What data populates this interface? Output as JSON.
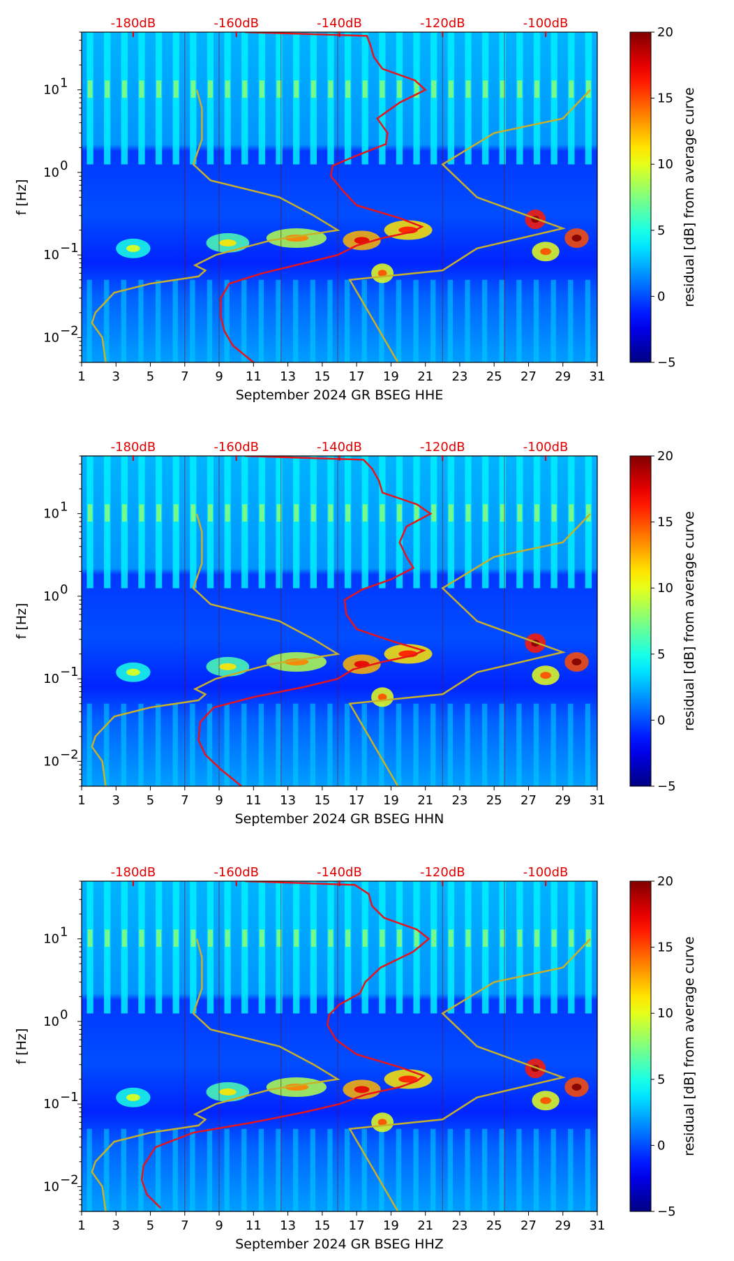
{
  "chart_data": [
    {
      "type": "heatmap",
      "title": "",
      "xlabel": "September 2024 GR BSEG  HHE",
      "ylabel": "f [Hz]",
      "x_ticks": [
        "1",
        "3",
        "5",
        "7",
        "9",
        "11",
        "13",
        "15",
        "17",
        "19",
        "21",
        "23",
        "25",
        "27",
        "29",
        "31"
      ],
      "y_ticks": [
        "10^-2",
        "10^-1",
        "10^0",
        "10^1"
      ],
      "xlim": [
        1,
        31
      ],
      "ylim": [
        0.005,
        50
      ],
      "yscale": "log",
      "top_axis_ticks": [
        "-180dB",
        "-160dB",
        "-140dB",
        "-120dB",
        "-100dB"
      ],
      "colorbar": {
        "label": "residual [dB] from average curve",
        "ticks": [
          "20",
          "15",
          "10",
          "5",
          "0",
          "−5"
        ],
        "range": [
          -5,
          20
        ],
        "colormap": "jet"
      },
      "red_curve": [
        [
          0.005,
          11.0
        ],
        [
          0.008,
          9.8
        ],
        [
          0.012,
          9.3
        ],
        [
          0.018,
          9.1
        ],
        [
          0.03,
          9.1
        ],
        [
          0.045,
          9.6
        ],
        [
          0.06,
          11.5
        ],
        [
          0.08,
          14.0
        ],
        [
          0.1,
          15.9
        ],
        [
          0.13,
          17.0
        ],
        [
          0.16,
          18.5
        ],
        [
          0.19,
          20.2
        ],
        [
          0.22,
          20.8
        ],
        [
          0.28,
          19.5
        ],
        [
          0.4,
          17.0
        ],
        [
          0.6,
          16.2
        ],
        [
          0.9,
          15.5
        ],
        [
          1.2,
          15.6
        ],
        [
          1.6,
          17.0
        ],
        [
          2.2,
          18.7
        ],
        [
          3,
          18.8
        ],
        [
          4.5,
          18.2
        ],
        [
          7,
          19.5
        ],
        [
          10,
          21.0
        ],
        [
          13,
          20.4
        ],
        [
          18,
          18.5
        ],
        [
          25,
          18.0
        ],
        [
          35,
          17.8
        ],
        [
          45,
          17.6
        ],
        [
          50,
          10.5
        ]
      ],
      "olive_curve_left": [
        [
          0.005,
          2.4
        ],
        [
          0.01,
          2.2
        ],
        [
          0.015,
          1.6
        ],
        [
          0.02,
          1.8
        ],
        [
          0.035,
          2.9
        ],
        [
          0.045,
          5.0
        ],
        [
          0.055,
          7.8
        ],
        [
          0.065,
          8.2
        ],
        [
          0.075,
          7.6
        ],
        [
          0.1,
          8.8
        ],
        [
          0.15,
          12.0
        ],
        [
          0.2,
          15.9
        ],
        [
          0.3,
          14.5
        ],
        [
          0.5,
          12.5
        ],
        [
          0.8,
          8.5
        ],
        [
          1.25,
          7.5
        ],
        [
          2.5,
          8.0
        ],
        [
          6,
          8.0
        ],
        [
          10,
          7.7
        ]
      ],
      "olive_curve_right": [
        [
          0.005,
          19.4
        ],
        [
          0.05,
          16.6
        ],
        [
          0.065,
          22.0
        ],
        [
          0.12,
          24.0
        ],
        [
          0.21,
          29.0
        ],
        [
          0.5,
          24.0
        ],
        [
          1.25,
          22.0
        ],
        [
          3,
          25.0
        ],
        [
          4.5,
          29.0
        ],
        [
          10,
          30.6
        ]
      ]
    },
    {
      "type": "heatmap",
      "title": "",
      "xlabel": "September 2024 GR BSEG  HHN",
      "ylabel": "f [Hz]",
      "x_ticks": [
        "1",
        "3",
        "5",
        "7",
        "9",
        "11",
        "13",
        "15",
        "17",
        "19",
        "21",
        "23",
        "25",
        "27",
        "29",
        "31"
      ],
      "y_ticks": [
        "10^-2",
        "10^-1",
        "10^0",
        "10^1"
      ],
      "xlim": [
        1,
        31
      ],
      "ylim": [
        0.005,
        50
      ],
      "yscale": "log",
      "top_axis_ticks": [
        "-180dB",
        "-160dB",
        "-140dB",
        "-120dB",
        "-100dB"
      ],
      "colorbar": {
        "label": "residual [dB] from average curve",
        "ticks": [
          "20",
          "15",
          "10",
          "5",
          "0",
          "−5"
        ],
        "range": [
          -5,
          20
        ],
        "colormap": "jet"
      },
      "red_curve": [
        [
          0.005,
          10.3
        ],
        [
          0.008,
          9.1
        ],
        [
          0.012,
          8.2
        ],
        [
          0.018,
          7.8
        ],
        [
          0.03,
          7.9
        ],
        [
          0.045,
          8.7
        ],
        [
          0.06,
          11.0
        ],
        [
          0.08,
          14.0
        ],
        [
          0.1,
          15.9
        ],
        [
          0.13,
          16.8
        ],
        [
          0.16,
          18.5
        ],
        [
          0.19,
          20.2
        ],
        [
          0.22,
          20.9
        ],
        [
          0.28,
          19.2
        ],
        [
          0.4,
          17.0
        ],
        [
          0.6,
          16.4
        ],
        [
          0.9,
          16.3
        ],
        [
          1.2,
          17.3
        ],
        [
          1.6,
          19.0
        ],
        [
          2.2,
          20.3
        ],
        [
          3,
          19.9
        ],
        [
          4.5,
          19.5
        ],
        [
          7,
          19.9
        ],
        [
          10,
          21.3
        ],
        [
          13,
          20.5
        ],
        [
          18,
          18.5
        ],
        [
          25,
          18.3
        ],
        [
          35,
          17.9
        ],
        [
          45,
          17.4
        ],
        [
          50,
          10.5
        ]
      ],
      "olive_curve_left": [
        [
          0.005,
          2.4
        ],
        [
          0.01,
          2.2
        ],
        [
          0.015,
          1.6
        ],
        [
          0.02,
          1.8
        ],
        [
          0.035,
          2.9
        ],
        [
          0.045,
          5.0
        ],
        [
          0.055,
          7.8
        ],
        [
          0.065,
          8.2
        ],
        [
          0.075,
          7.6
        ],
        [
          0.1,
          8.8
        ],
        [
          0.15,
          12.0
        ],
        [
          0.2,
          15.9
        ],
        [
          0.3,
          14.5
        ],
        [
          0.5,
          12.5
        ],
        [
          0.8,
          8.5
        ],
        [
          1.25,
          7.5
        ],
        [
          2.5,
          8.0
        ],
        [
          6,
          8.0
        ],
        [
          10,
          7.7
        ]
      ],
      "olive_curve_right": [
        [
          0.005,
          19.4
        ],
        [
          0.05,
          16.6
        ],
        [
          0.065,
          22.0
        ],
        [
          0.12,
          24.0
        ],
        [
          0.21,
          29.0
        ],
        [
          0.5,
          24.0
        ],
        [
          1.25,
          22.0
        ],
        [
          3,
          25.0
        ],
        [
          4.5,
          29.0
        ],
        [
          10,
          30.6
        ]
      ]
    },
    {
      "type": "heatmap",
      "title": "",
      "xlabel": "September 2024 GR BSEG  HHZ",
      "ylabel": "f [Hz]",
      "x_ticks": [
        "1",
        "3",
        "5",
        "7",
        "9",
        "11",
        "13",
        "15",
        "17",
        "19",
        "21",
        "23",
        "25",
        "27",
        "29",
        "31"
      ],
      "y_ticks": [
        "10^-2",
        "10^-1",
        "10^0",
        "10^1"
      ],
      "xlim": [
        1,
        31
      ],
      "ylim": [
        0.005,
        50
      ],
      "yscale": "log",
      "top_axis_ticks": [
        "-180dB",
        "-160dB",
        "-140dB",
        "-120dB",
        "-100dB"
      ],
      "colorbar": {
        "label": "residual [dB] from average curve",
        "ticks": [
          "20",
          "15",
          "10",
          "5",
          "0",
          "−5"
        ],
        "range": [
          -5,
          20
        ],
        "colormap": "jet"
      },
      "red_curve": [
        [
          0.0055,
          5.6
        ],
        [
          0.008,
          4.8
        ],
        [
          0.012,
          4.5
        ],
        [
          0.018,
          4.6
        ],
        [
          0.03,
          5.3
        ],
        [
          0.045,
          7.5
        ],
        [
          0.06,
          11.0
        ],
        [
          0.08,
          14.0
        ],
        [
          0.1,
          16.0
        ],
        [
          0.13,
          17.5
        ],
        [
          0.16,
          19.5
        ],
        [
          0.19,
          20.5
        ],
        [
          0.22,
          20.9
        ],
        [
          0.28,
          19.5
        ],
        [
          0.4,
          17.0
        ],
        [
          0.6,
          15.8
        ],
        [
          0.9,
          15.3
        ],
        [
          1.2,
          15.4
        ],
        [
          1.6,
          16.0
        ],
        [
          2.2,
          17.2
        ],
        [
          3,
          17.5
        ],
        [
          4.5,
          18.4
        ],
        [
          7,
          20.3
        ],
        [
          10,
          21.2
        ],
        [
          13,
          20.5
        ],
        [
          18,
          18.6
        ],
        [
          25,
          17.9
        ],
        [
          35,
          17.7
        ],
        [
          45,
          16.9
        ],
        [
          50,
          10.5
        ]
      ],
      "olive_curve_left": [
        [
          0.005,
          2.4
        ],
        [
          0.01,
          2.2
        ],
        [
          0.015,
          1.6
        ],
        [
          0.02,
          1.8
        ],
        [
          0.035,
          2.9
        ],
        [
          0.045,
          5.0
        ],
        [
          0.055,
          7.8
        ],
        [
          0.065,
          8.2
        ],
        [
          0.075,
          7.6
        ],
        [
          0.1,
          8.8
        ],
        [
          0.15,
          12.0
        ],
        [
          0.2,
          15.9
        ],
        [
          0.3,
          14.5
        ],
        [
          0.5,
          12.5
        ],
        [
          0.8,
          8.5
        ],
        [
          1.25,
          7.5
        ],
        [
          2.5,
          8.0
        ],
        [
          6,
          8.0
        ],
        [
          10,
          7.7
        ]
      ],
      "olive_curve_right": [
        [
          0.005,
          19.4
        ],
        [
          0.05,
          16.6
        ],
        [
          0.065,
          22.0
        ],
        [
          0.12,
          24.0
        ],
        [
          0.21,
          29.0
        ],
        [
          0.5,
          24.0
        ],
        [
          1.25,
          22.0
        ],
        [
          3,
          25.0
        ],
        [
          4.5,
          29.0
        ],
        [
          10,
          30.6
        ]
      ]
    }
  ]
}
